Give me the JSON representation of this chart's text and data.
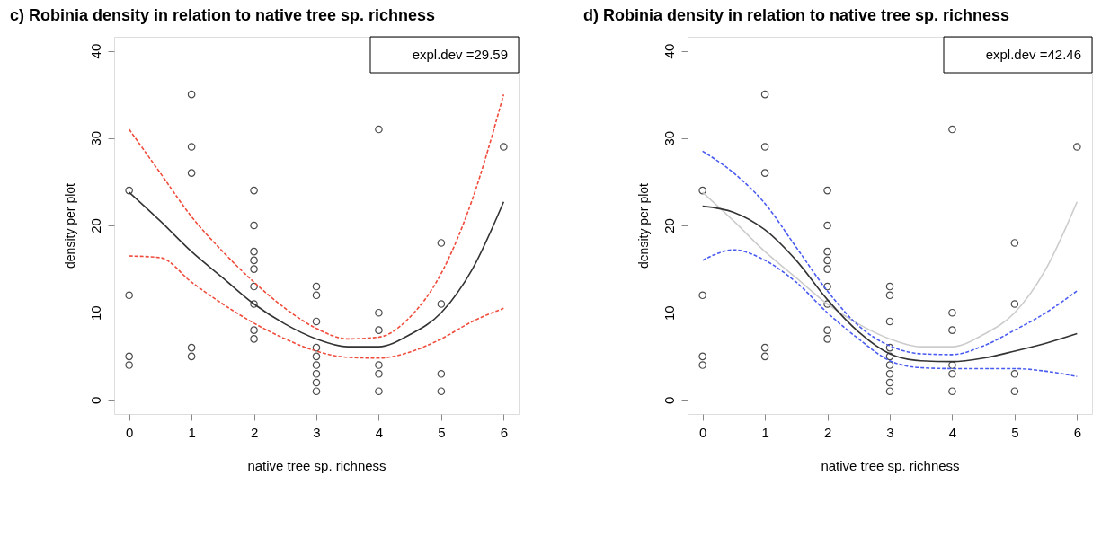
{
  "chart_data": [
    {
      "type": "scatter",
      "title": "c) Robinia density in relation to native tree sp. richness",
      "xlabel": "native tree sp. richness",
      "ylabel": "density per plot",
      "xlim": [
        -0.24,
        6.24
      ],
      "ylim": [
        -1.6,
        41.6
      ],
      "xticks": [
        0,
        1,
        2,
        3,
        4,
        5,
        6
      ],
      "yticks": [
        0,
        10,
        20,
        30,
        40
      ],
      "grid": false,
      "annotations": [
        "expl.dev =29.59"
      ],
      "series": [
        {
          "marker": "circle",
          "color": "#000000",
          "x": [
            0,
            0,
            0,
            0,
            1,
            1,
            1,
            1,
            1,
            2,
            2,
            2,
            2,
            2,
            2,
            2,
            2,
            2,
            3,
            3,
            3,
            3,
            3,
            3,
            3,
            3,
            3,
            4,
            4,
            4,
            4,
            4,
            4,
            5,
            5,
            5,
            5,
            6
          ],
          "values": [
            24,
            12,
            5,
            4,
            35,
            29,
            26,
            6,
            5,
            24,
            20,
            17,
            16,
            15,
            13,
            11,
            8,
            7,
            13,
            12,
            9,
            6,
            5,
            4,
            3,
            2,
            1,
            31,
            10,
            8,
            4,
            3,
            1,
            18,
            11,
            3,
            1,
            29
          ]
        },
        {
          "type": "line",
          "line_style": "solid",
          "color": "#333333",
          "x": [
            0,
            0.5,
            1,
            1.5,
            2,
            2.5,
            3,
            3.5,
            4,
            4.5,
            5,
            5.5,
            6
          ],
          "values": [
            23.8,
            20.5,
            17,
            14,
            11,
            8.7,
            7,
            6.1,
            6.1,
            7.5,
            10,
            15,
            22.7
          ]
        },
        {
          "type": "line",
          "line_style": "dashed",
          "color": "#f04c3c",
          "x": [
            0,
            0.5,
            1,
            1.5,
            2,
            2.5,
            3,
            3.5,
            4,
            4.5,
            5,
            5.5,
            6
          ],
          "values": [
            31,
            26,
            21,
            17,
            13.5,
            10.5,
            8.2,
            7,
            7.2,
            9.5,
            14.5,
            23,
            35
          ]
        },
        {
          "type": "line",
          "line_style": "dashed",
          "color": "#f04c3c",
          "x": [
            0,
            0.5,
            1,
            1.5,
            2,
            2.5,
            3,
            3.5,
            4,
            4.5,
            5,
            5.5,
            6
          ],
          "values": [
            16.5,
            16.3,
            13.5,
            11,
            8.8,
            7,
            5.6,
            4.9,
            4.8,
            5.5,
            7,
            9,
            10.5
          ]
        }
      ]
    },
    {
      "type": "scatter",
      "title": "d) Robinia density in relation to native tree sp. richness",
      "xlabel": "native tree sp. richness",
      "ylabel": "density per plot",
      "xlim": [
        -0.24,
        6.24
      ],
      "ylim": [
        -1.6,
        41.6
      ],
      "xticks": [
        0,
        1,
        2,
        3,
        4,
        5,
        6
      ],
      "yticks": [
        0,
        10,
        20,
        30,
        40
      ],
      "grid": false,
      "annotations": [
        "expl.dev =42.46"
      ],
      "series": [
        {
          "marker": "circle",
          "color": "#000000",
          "x": [
            0,
            0,
            0,
            0,
            1,
            1,
            1,
            1,
            1,
            2,
            2,
            2,
            2,
            2,
            2,
            2,
            2,
            2,
            3,
            3,
            3,
            3,
            3,
            3,
            3,
            3,
            3,
            4,
            4,
            4,
            4,
            4,
            4,
            5,
            5,
            5,
            5,
            6
          ],
          "values": [
            24,
            12,
            5,
            4,
            35,
            29,
            26,
            6,
            5,
            24,
            20,
            17,
            16,
            15,
            13,
            11,
            8,
            7,
            13,
            12,
            9,
            6,
            5,
            4,
            3,
            2,
            1,
            31,
            10,
            8,
            4,
            3,
            1,
            18,
            11,
            3,
            1,
            29
          ]
        },
        {
          "type": "line",
          "line_style": "solid",
          "color": "#cccccc",
          "x": [
            0,
            0.5,
            1,
            1.5,
            2,
            2.5,
            3,
            3.5,
            4,
            4.5,
            5,
            5.5,
            6
          ],
          "values": [
            23.8,
            20.5,
            17,
            14,
            11,
            8.7,
            7,
            6.1,
            6.1,
            7.5,
            10,
            15,
            22.7
          ]
        },
        {
          "type": "line",
          "line_style": "solid",
          "color": "#333333",
          "x": [
            0,
            0.5,
            1,
            1.5,
            2,
            2.5,
            3,
            3.5,
            4,
            4.5,
            5,
            5.5,
            6
          ],
          "values": [
            22.2,
            21.5,
            19.5,
            16,
            11.5,
            7.8,
            5.3,
            4.5,
            4.4,
            4.8,
            5.6,
            6.5,
            7.6
          ]
        },
        {
          "type": "line",
          "line_style": "dashed",
          "color": "#4a5cf0",
          "x": [
            0,
            0.5,
            1,
            1.5,
            2,
            2.5,
            3,
            3.5,
            4,
            4.5,
            5,
            5.5,
            6
          ],
          "values": [
            28.5,
            26,
            22.5,
            17.5,
            12.5,
            8.5,
            6.2,
            5.3,
            5.2,
            6.2,
            8,
            10,
            12.5
          ]
        },
        {
          "type": "line",
          "line_style": "dashed",
          "color": "#4a5cf0",
          "x": [
            0,
            0.5,
            1,
            1.5,
            2,
            2.5,
            3,
            3.5,
            4,
            4.5,
            5,
            5.5,
            6
          ],
          "values": [
            16,
            17.2,
            16,
            13.5,
            10,
            7,
            4.5,
            3.7,
            3.6,
            3.6,
            3.6,
            3.3,
            2.7
          ]
        }
      ]
    }
  ]
}
